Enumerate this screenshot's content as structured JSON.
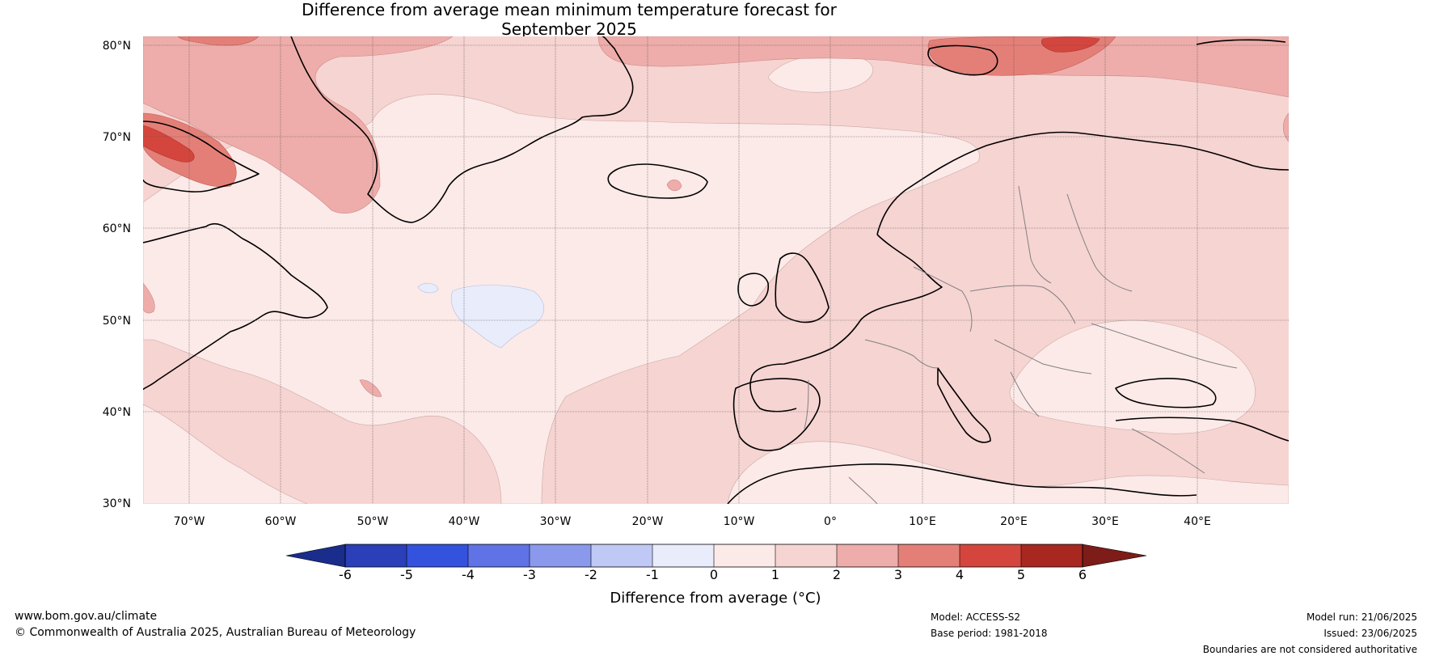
{
  "title": {
    "line1": "Difference from average mean minimum temperature forecast for",
    "line2": "September 2025"
  },
  "map": {
    "lat_labels": [
      "80°N",
      "70°N",
      "60°N",
      "50°N",
      "40°N",
      "30°N"
    ],
    "lon_labels": [
      "70°W",
      "60°W",
      "50°W",
      "40°W",
      "30°W",
      "20°W",
      "10°W",
      "0°",
      "10°E",
      "20°E",
      "30°E",
      "40°E"
    ],
    "extent": {
      "lon_min": -75,
      "lon_max": 50,
      "lat_min": 30,
      "lat_max": 81
    },
    "background_color": "#f6d4d2",
    "coast_color": "#000000",
    "border_color": "#808080"
  },
  "colorbar": {
    "label": "Difference from average (°C)",
    "ticks": [
      "-6",
      "-5",
      "-4",
      "-3",
      "-2",
      "-1",
      "0",
      "1",
      "2",
      "3",
      "4",
      "5",
      "6"
    ],
    "colors": [
      "#1a2d8c",
      "#2a3fb8",
      "#3352dd",
      "#5f73e6",
      "#8a99ec",
      "#c0c8f5",
      "#e8ecfb",
      "#fceae8",
      "#f6d4d2",
      "#eeadaa",
      "#e47f78",
      "#d4463d",
      "#a8271f",
      "#7d1c18"
    ]
  },
  "footer": {
    "website": "www.bom.gov.au/climate",
    "copyright": "© Commonwealth of Australia 2025, Australian Bureau of Meteorology",
    "model": "Model: ACCESS-S2",
    "base_period": "Base period: 1981-2018",
    "model_run": "Model run: 21/06/2025",
    "issued": "Issued: 23/06/2025",
    "disclaimer": "Boundaries are not considered authoritative"
  }
}
